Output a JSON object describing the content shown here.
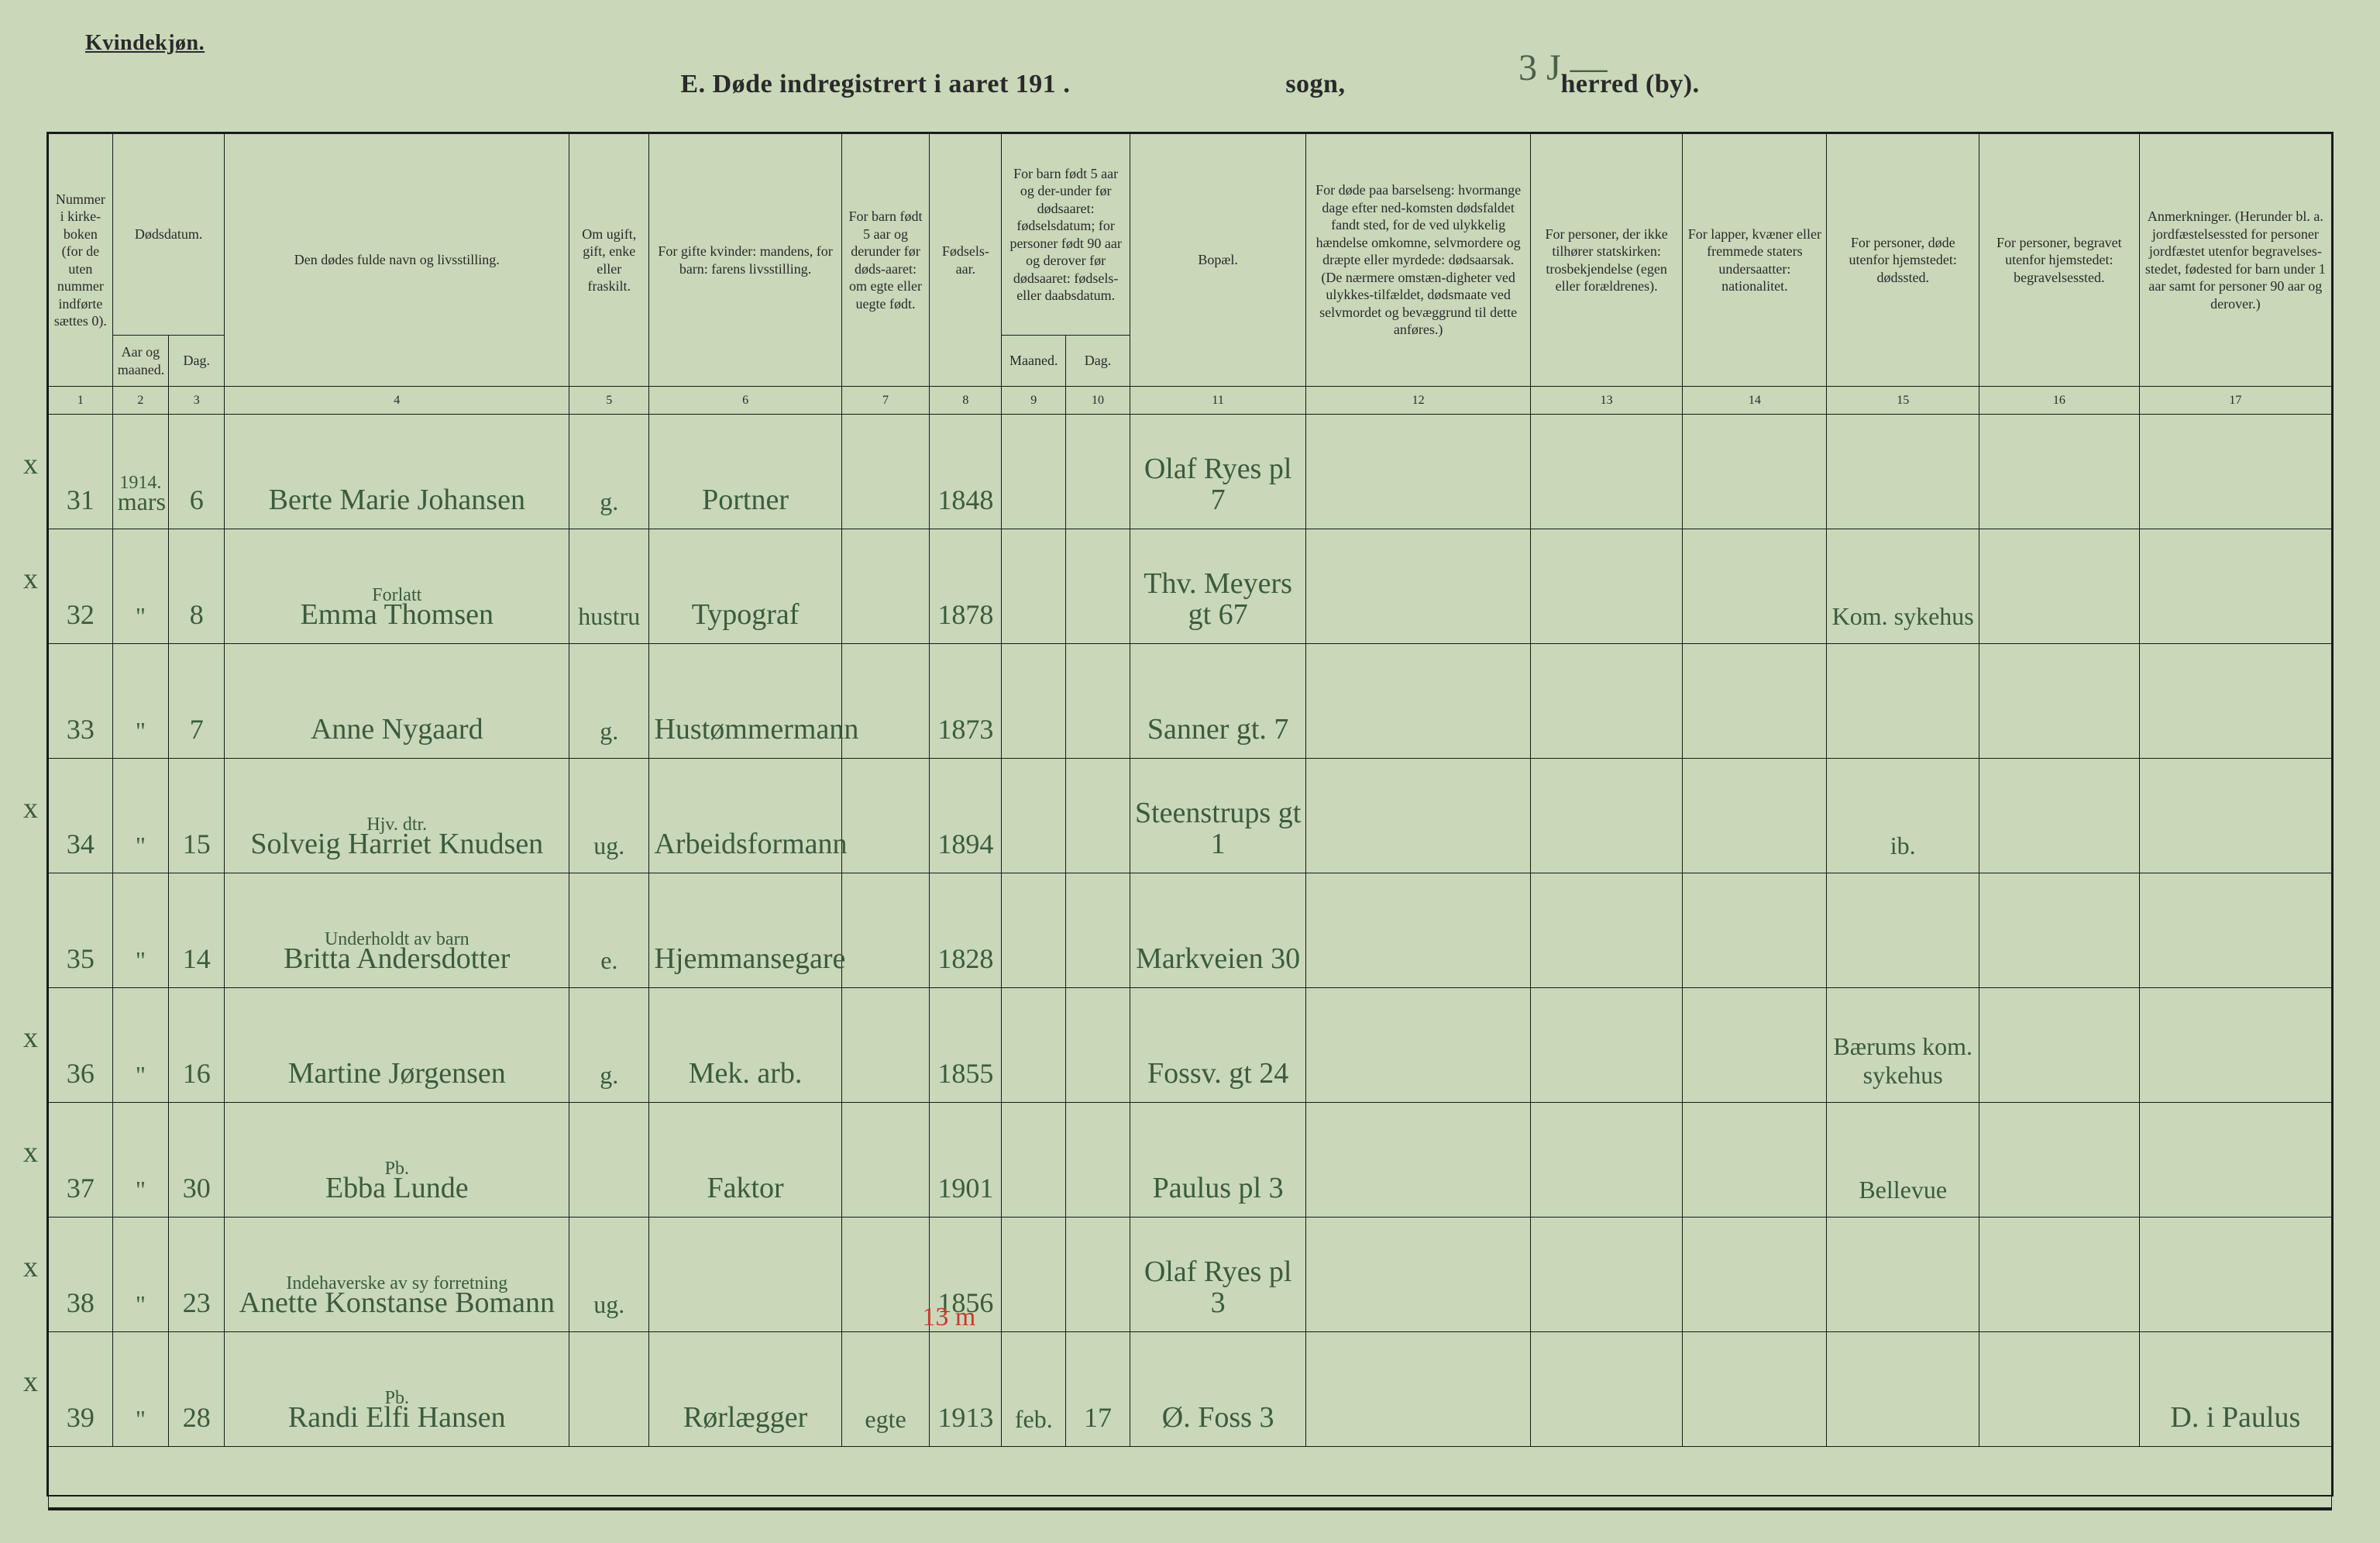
{
  "header": {
    "top_label": "Kvindekjøn.",
    "title_prefix": "E.  Døde indregistrert i aaret 191",
    "title_year_suffix": ".",
    "title_sogn": "sogn,",
    "title_herred": "herred (by).",
    "handwritten_sogn": "3 J —"
  },
  "columns": {
    "c1": "Nummer i kirke-boken (for de uten nummer indførte sættes 0).",
    "c2_group": "Dødsdatum.",
    "c2": "Aar og maaned.",
    "c3": "Dag.",
    "c4": "Den dødes fulde navn og livsstilling.",
    "c5": "Om ugift, gift, enke eller fraskilt.",
    "c6": "For gifte kvinder: mandens, for barn: farens livsstilling.",
    "c7": "For barn født 5 aar og derunder før døds-aaret: om egte eller uegte født.",
    "c8": "Fødsels-aar.",
    "c9_10_group": "For barn født 5 aar og der-under før dødsaaret: fødselsdatum; for personer født 90 aar og derover før dødsaaret: fødsels- eller daabsdatum.",
    "c9": "Maaned.",
    "c10": "Dag.",
    "c11": "Bopæl.",
    "c12": "For døde paa barselseng: hvormange dage efter ned-komsten dødsfaldet fandt sted, for de ved ulykkelig hændelse omkomne, selvmordere og dræpte eller myrdede: dødsaarsak. (De nærmere omstæn-digheter ved ulykkes-tilfældet, dødsmaate ved selvmordet og bevæggrund til dette anføres.)",
    "c13": "For personer, der ikke tilhører statskirken: trosbekjendelse (egen eller forældrenes).",
    "c14": "For lapper, kvæner eller fremmede staters undersaatter: nationalitet.",
    "c15": "For personer, døde utenfor hjemstedet: dødssted.",
    "c16": "For personer, begravet utenfor hjemstedet: begravelsessted.",
    "c17": "Anmerkninger. (Herunder bl. a. jordfæstelsessted for personer jordfæstet utenfor begravelses-stedet, fødested for barn under 1 aar samt for personer 90 aar og derover.)"
  },
  "colnums": [
    "1",
    "2",
    "3",
    "4",
    "5",
    "6",
    "7",
    "8",
    "9",
    "10",
    "11",
    "12",
    "13",
    "14",
    "15",
    "16",
    "17"
  ],
  "year_note": "1914.",
  "rows": [
    {
      "mark": "x",
      "no": "31",
      "month": "mars",
      "day": "6",
      "name": "Berte Marie Johansen",
      "civil": "g.",
      "spouse": "Portner",
      "c7": "",
      "birth": "1848",
      "m9": "",
      "d10": "",
      "residence": "Olaf Ryes pl 7",
      "c12": "",
      "c13": "",
      "c14": "",
      "c15": "",
      "c16": "",
      "c17": ""
    },
    {
      "mark": "x",
      "no": "32",
      "month": "\"",
      "day": "8",
      "supnote": "Forlatt",
      "name": "Emma Thomsen",
      "civil": "hustru",
      "spouse": "Typograf",
      "c7": "",
      "birth": "1878",
      "m9": "",
      "d10": "",
      "residence": "Thv. Meyers gt 67",
      "c12": "",
      "c13": "",
      "c14": "",
      "c15": "Kom. sykehus",
      "c16": "",
      "c17": ""
    },
    {
      "mark": "",
      "no": "33",
      "month": "\"",
      "day": "7",
      "name": "Anne Nygaard",
      "civil": "g.",
      "spouse": "Hustømmermann",
      "c7": "",
      "birth": "1873",
      "m9": "",
      "d10": "",
      "residence": "Sanner gt. 7",
      "c12": "",
      "c13": "",
      "c14": "",
      "c15": "",
      "c16": "",
      "c17": ""
    },
    {
      "mark": "x",
      "no": "34",
      "month": "\"",
      "day": "15",
      "supnote": "Hjv. dtr.",
      "name": "Solveig Harriet Knudsen",
      "civil": "ug.",
      "spouse": "Arbeidsformann",
      "c7": "",
      "birth": "1894",
      "m9": "",
      "d10": "",
      "residence": "Steenstrups gt 1",
      "c12": "",
      "c13": "",
      "c14": "",
      "c15": "ib.",
      "c16": "",
      "c17": ""
    },
    {
      "mark": "",
      "no": "35",
      "month": "\"",
      "day": "14",
      "supnote": "Underholdt av barn",
      "name": "Britta Andersdotter",
      "civil": "e.",
      "spouse": "Hjemmansegare",
      "c7": "",
      "birth": "1828",
      "m9": "",
      "d10": "",
      "residence": "Markveien 30",
      "c12": "",
      "c13": "",
      "c14": "",
      "c15": "",
      "c16": "",
      "c17": ""
    },
    {
      "mark": "x",
      "no": "36",
      "month": "\"",
      "day": "16",
      "name": "Martine Jørgensen",
      "civil": "g.",
      "spouse": "Mek. arb.",
      "c7": "",
      "birth": "1855",
      "m9": "",
      "d10": "",
      "residence": "Fossv. gt 24",
      "c12": "",
      "c13": "",
      "c14": "",
      "c15": "Bærums kom. sykehus",
      "c16": "",
      "c17": ""
    },
    {
      "mark": "x",
      "no": "37",
      "month": "\"",
      "day": "30",
      "supnote": "Pb.",
      "name": "Ebba Lunde",
      "civil": "",
      "spouse": "Faktor",
      "c7": "",
      "birth": "1901",
      "m9": "",
      "d10": "",
      "residence": "Paulus pl 3",
      "c12": "",
      "c13": "",
      "c14": "",
      "c15": "Bellevue",
      "c16": "",
      "c17": ""
    },
    {
      "mark": "x",
      "no": "38",
      "month": "\"",
      "day": "23",
      "supnote": "Indehaverske av sy forretning",
      "name": "Anette Konstanse Bomann",
      "civil": "ug.",
      "spouse": "",
      "c7": "",
      "birth": "1856",
      "m9": "",
      "d10": "",
      "residence": "Olaf Ryes pl 3",
      "c12": "",
      "c13": "",
      "c14": "",
      "c15": "",
      "c16": "",
      "c17": ""
    },
    {
      "mark": "x",
      "no": "39",
      "month": "\"",
      "day": "28",
      "supnote": "Pb.",
      "name": "Randi Elfi Hansen",
      "civil": "",
      "spouse": "Rørlægger",
      "c7": "egte",
      "birth": "1913",
      "m9": "feb.",
      "d10": "17",
      "residence": "Ø. Foss 3",
      "c12": "",
      "c13": "",
      "c14": "",
      "c15": "",
      "c16": "",
      "c17": "D. i Paulus",
      "red_note": "13 m"
    }
  ],
  "style": {
    "background_color": "#c8d8b8",
    "ink_color": "#3d5a3d",
    "print_color": "#1a1a1a",
    "red_color": "#c63a2e",
    "handwriting_font": "Brush Script MT",
    "print_font": "Times New Roman",
    "header_fontsize_pt": 18,
    "body_hw_fontsize_pt": 38,
    "title_fontsize_pt": 34
  }
}
